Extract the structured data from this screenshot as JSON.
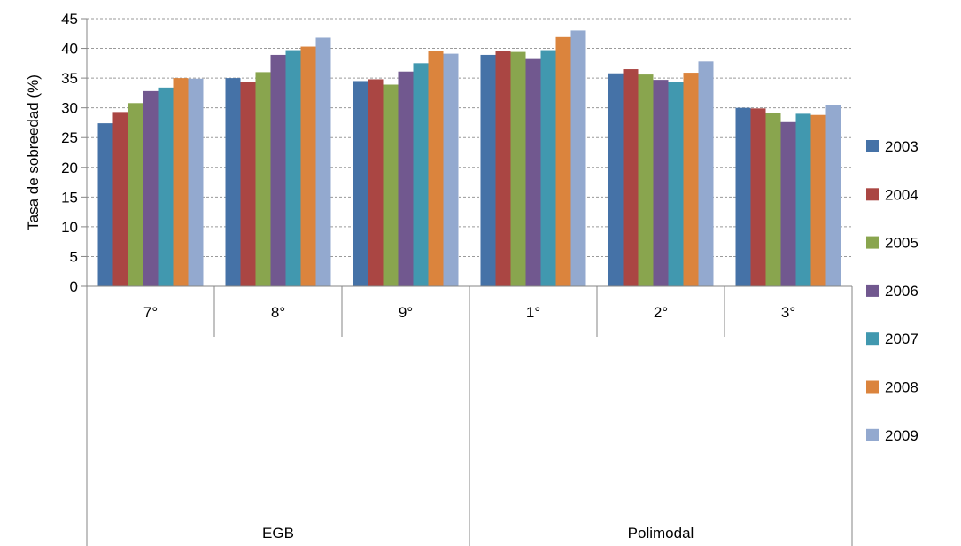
{
  "chart_data": {
    "type": "bar",
    "title": "",
    "xlabel": "",
    "ylabel": "Tasa de sobreedad (%)",
    "ylim": [
      0,
      45
    ],
    "yticks": [
      0,
      5,
      10,
      15,
      20,
      25,
      30,
      35,
      40,
      45
    ],
    "grid": "horizontal-dashed",
    "legend_position": "right",
    "categories": [
      "7°",
      "8°",
      "9°",
      "1°",
      "2°",
      "3°"
    ],
    "groups": [
      {
        "label": "EGB",
        "categories": [
          "7°",
          "8°",
          "9°"
        ]
      },
      {
        "label": "Polimodal",
        "categories": [
          "1°",
          "2°",
          "3°"
        ]
      }
    ],
    "series": [
      {
        "name": "2003",
        "color": "#4572A7",
        "values": [
          27.4,
          35.0,
          34.5,
          38.9,
          35.8,
          30.0
        ]
      },
      {
        "name": "2004",
        "color": "#AA4643",
        "values": [
          29.3,
          34.3,
          34.8,
          39.5,
          36.5,
          29.9
        ]
      },
      {
        "name": "2005",
        "color": "#89A54E",
        "values": [
          30.8,
          36.0,
          33.9,
          39.4,
          35.6,
          29.1
        ]
      },
      {
        "name": "2006",
        "color": "#71588F",
        "values": [
          32.8,
          38.9,
          36.1,
          38.2,
          34.7,
          27.6
        ]
      },
      {
        "name": "2007",
        "color": "#4198AF",
        "values": [
          33.4,
          39.7,
          37.5,
          39.7,
          34.4,
          29.0
        ]
      },
      {
        "name": "2008",
        "color": "#DB843D",
        "values": [
          35.0,
          40.3,
          39.6,
          41.9,
          35.9,
          28.8
        ]
      },
      {
        "name": "2009",
        "color": "#93A9CF",
        "values": [
          34.9,
          41.8,
          39.1,
          43.0,
          37.8,
          30.5
        ]
      }
    ]
  }
}
